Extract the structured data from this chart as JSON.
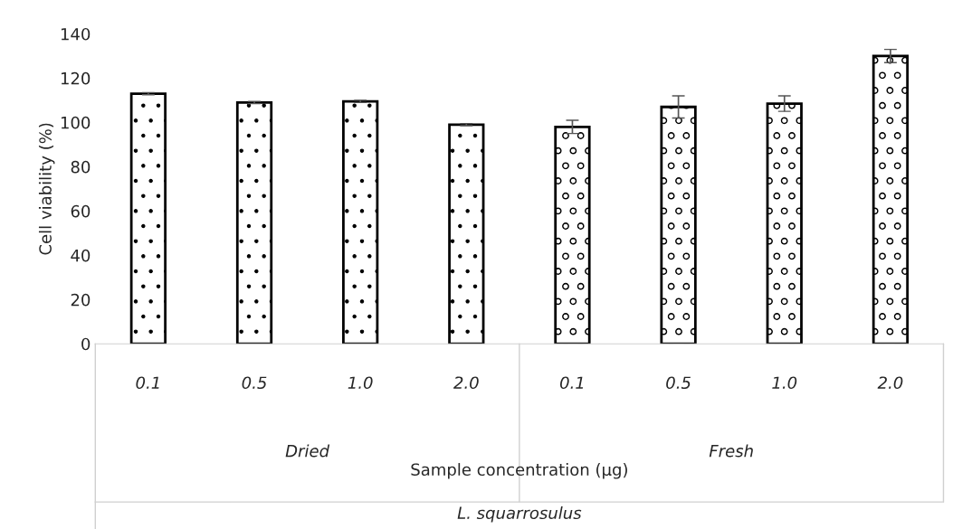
{
  "chart_data": {
    "type": "bar",
    "ylabel": "Cell viability (%)",
    "categories": [
      "0.1",
      "0.5",
      "1.0",
      "2.0",
      "0.1",
      "0.5",
      "1.0",
      "2.0"
    ],
    "values": [
      113,
      109,
      109.5,
      99,
      98,
      107,
      108.5,
      130
    ],
    "errors": [
      0.5,
      0.5,
      0.5,
      0.5,
      3,
      5,
      3.5,
      3
    ],
    "colors": [
      "#000000",
      "#000000",
      "#000000",
      "#000000",
      "#000000",
      "#000000",
      "#000000",
      "#000000"
    ],
    "ylim": [
      0,
      140
    ],
    "yticks": [
      0,
      20,
      40,
      60,
      80,
      100,
      120,
      140
    ],
    "grid": false,
    "legend": false,
    "annotations": [
      "Dried",
      "Fresh",
      "Sample concentration (μg)",
      "L. squarrosulus"
    ]
  }
}
